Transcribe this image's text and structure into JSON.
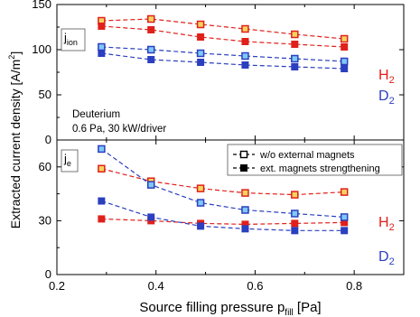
{
  "chart_data": [
    {
      "type": "line",
      "panel_label": {
        "main": "j",
        "sub": "ion"
      },
      "annotations": [
        "Deuterium",
        "0.6 Pa, 30 kW/driver"
      ],
      "ylim": [
        0,
        150
      ],
      "yticks": [
        0,
        50,
        100,
        150
      ],
      "xlim": [
        0.2,
        0.9
      ],
      "series": [
        {
          "name": "H",
          "sub": "2",
          "style": "w/o external magnets",
          "color": "#e0201a",
          "x": [
            0.29,
            0.39,
            0.49,
            0.58,
            0.68,
            0.78
          ],
          "y": [
            132,
            134,
            128,
            123,
            117,
            112
          ]
        },
        {
          "name": "H",
          "sub": "2",
          "style": "ext. magnets strengthening",
          "color": "#e0201a",
          "x": [
            0.29,
            0.39,
            0.49,
            0.58,
            0.68,
            0.78
          ],
          "y": [
            126,
            122,
            114,
            109,
            106,
            103
          ]
        },
        {
          "name": "D",
          "sub": "2",
          "style": "w/o external magnets",
          "color": "#2b3fbf",
          "x": [
            0.29,
            0.39,
            0.49,
            0.58,
            0.68,
            0.78
          ],
          "y": [
            103,
            100,
            96,
            93,
            90,
            87
          ]
        },
        {
          "name": "D",
          "sub": "2",
          "style": "ext. magnets strengthening",
          "color": "#2b3fbf",
          "x": [
            0.29,
            0.39,
            0.49,
            0.58,
            0.68,
            0.78
          ],
          "y": [
            96,
            89,
            86,
            83,
            81,
            79
          ]
        }
      ]
    },
    {
      "type": "line",
      "panel_label": {
        "main": "j",
        "sub": "e"
      },
      "ylim": [
        0,
        75
      ],
      "yticks": [
        0,
        30,
        60
      ],
      "xlim": [
        0.2,
        0.9
      ],
      "xticks": [
        0.2,
        0.4,
        0.6,
        0.8
      ],
      "xlabel": {
        "main": "Source filling pressure  p",
        "sub": "fill",
        "tail": " [Pa]"
      },
      "legend": {
        "position": "top-right",
        "entries": [
          "w/o external magnets",
          "ext. magnets strengthening"
        ]
      },
      "series": [
        {
          "name": "H",
          "sub": "2",
          "style": "w/o external magnets",
          "color": "#e0201a",
          "x": [
            0.29,
            0.39,
            0.49,
            0.58,
            0.68,
            0.78
          ],
          "y": [
            59,
            52,
            48,
            45.5,
            44.5,
            46
          ]
        },
        {
          "name": "H",
          "sub": "2",
          "style": "ext. magnets strengthening",
          "color": "#e0201a",
          "x": [
            0.29,
            0.39,
            0.49,
            0.58,
            0.68,
            0.78
          ],
          "y": [
            31,
            30,
            28.5,
            28,
            28.5,
            29
          ]
        },
        {
          "name": "D",
          "sub": "2",
          "style": "w/o external magnets",
          "color": "#2b3fbf",
          "x": [
            0.29,
            0.39,
            0.49,
            0.58,
            0.68,
            0.78
          ],
          "y": [
            70,
            50,
            40,
            36,
            34,
            32
          ]
        },
        {
          "name": "D",
          "sub": "2",
          "style": "ext. magnets strengthening",
          "color": "#2b3fbf",
          "x": [
            0.29,
            0.39,
            0.49,
            0.58,
            0.68,
            0.78
          ],
          "y": [
            41,
            32,
            27,
            25.5,
            24.5,
            24.5
          ]
        }
      ]
    }
  ],
  "shared_ylabel": {
    "main": "Extracted current density [A/m",
    "sup": "2",
    "tail": "]"
  },
  "colors": {
    "hydrogen": "#e0201a",
    "deuterium": "#2b3fbf",
    "open_marker_fill": "#f4d35e",
    "open_marker_fill_d": "#7fc8f8"
  }
}
